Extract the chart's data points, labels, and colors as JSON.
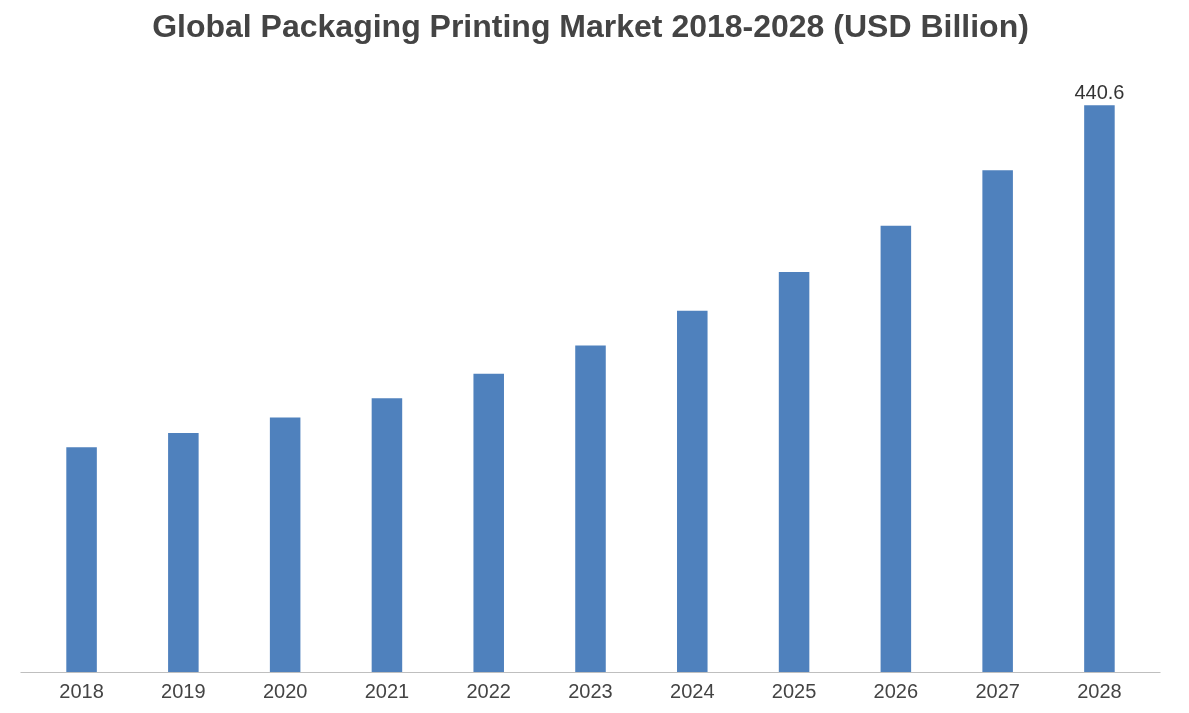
{
  "chart_data": {
    "type": "bar",
    "title": "Global Packaging Printing Market 2018-2028 (USD Billion)",
    "categories": [
      "2018",
      "2019",
      "2020",
      "2021",
      "2022",
      "2023",
      "2024",
      "2025",
      "2026",
      "2027",
      "2028"
    ],
    "values": [
      175,
      186,
      198,
      213,
      232,
      254,
      281,
      311,
      347,
      390,
      440.6
    ],
    "value_labels": [
      null,
      null,
      null,
      null,
      null,
      null,
      null,
      null,
      null,
      null,
      "440.6"
    ],
    "color": "#4f81bd",
    "tick_labels": "x",
    "grid": false
  }
}
